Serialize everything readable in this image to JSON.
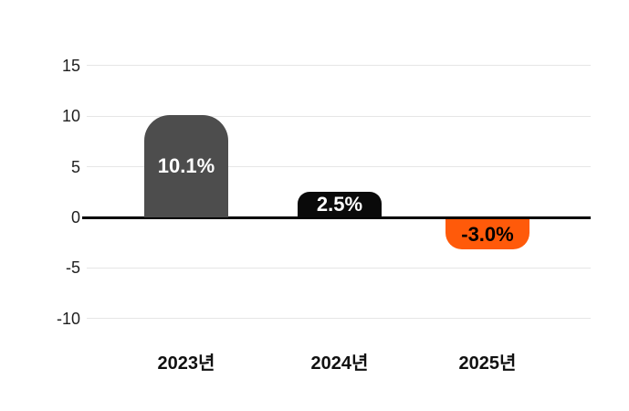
{
  "chart_data": {
    "type": "bar",
    "title": "",
    "xlabel": "",
    "ylabel": "",
    "categories": [
      "2023년",
      "2024년",
      "2025년"
    ],
    "values": [
      10.1,
      2.5,
      -3.0
    ],
    "value_labels": [
      "10.1%",
      "2.5%",
      "-3.0%"
    ],
    "bar_colors": [
      "#4D4D4D",
      "#0A0A0A",
      "#FF5A0A"
    ],
    "value_label_colors": [
      "#FFFFFF",
      "#FFFFFF",
      "#000000"
    ],
    "yticks": [
      15,
      10,
      5,
      0,
      -5,
      -10
    ],
    "ylim": [
      -10,
      15
    ],
    "grid": "horizontal",
    "legend": "none",
    "gridline_color": "#E6E6E6",
    "zero_line_color": "#000000",
    "tick_label_color": "#1F1F1F",
    "background_color": "#FFFFFF"
  }
}
